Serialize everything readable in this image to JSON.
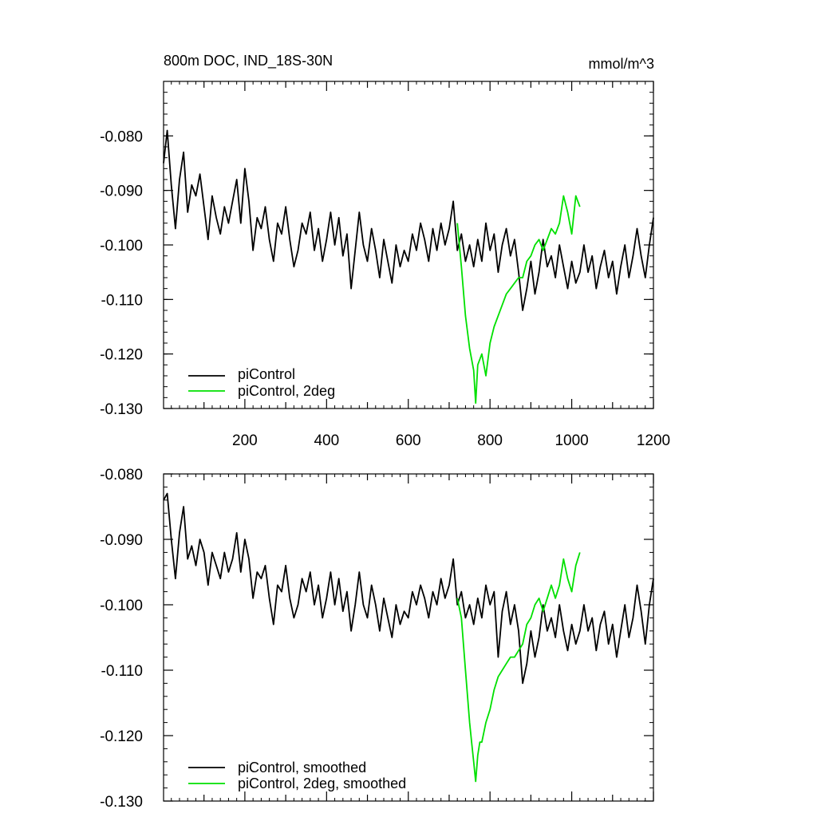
{
  "chart_data": [
    {
      "type": "line",
      "title": "800m DOC, IND_18S-30N",
      "units": "mmol/m^3",
      "xlim": [
        1,
        1200
      ],
      "ylim": [
        -0.13,
        -0.07
      ],
      "x_ticks": [
        200,
        400,
        600,
        800,
        1000,
        1200
      ],
      "x_tick_labels": [
        "200",
        "400",
        "600",
        "800",
        "1000",
        "1200"
      ],
      "y_ticks": [
        -0.13,
        -0.12,
        -0.11,
        -0.1,
        -0.09,
        -0.08
      ],
      "y_tick_labels": [
        "-0.130",
        "-0.120",
        "-0.110",
        "-0.100",
        "-0.090",
        "-0.080"
      ],
      "legend_position": "bottom-left",
      "series": [
        {
          "name": "piControl",
          "color": "#000000",
          "x": [
            1,
            10,
            20,
            30,
            40,
            50,
            60,
            70,
            80,
            90,
            100,
            110,
            120,
            130,
            140,
            150,
            160,
            170,
            180,
            190,
            200,
            210,
            220,
            230,
            240,
            250,
            260,
            270,
            280,
            290,
            300,
            310,
            320,
            330,
            340,
            350,
            360,
            370,
            380,
            390,
            400,
            410,
            420,
            430,
            440,
            450,
            460,
            470,
            480,
            490,
            500,
            510,
            520,
            530,
            540,
            550,
            560,
            570,
            580,
            590,
            600,
            610,
            620,
            630,
            640,
            650,
            660,
            670,
            680,
            690,
            700,
            710,
            720,
            730,
            740,
            750,
            760,
            770,
            780,
            790,
            800,
            810,
            820,
            830,
            840,
            850,
            860,
            870,
            880,
            890,
            900,
            910,
            920,
            930,
            940,
            950,
            960,
            970,
            980,
            990,
            1000,
            1010,
            1020,
            1030,
            1040,
            1050,
            1060,
            1070,
            1080,
            1090,
            1100,
            1110,
            1120,
            1130,
            1140,
            1150,
            1160,
            1170,
            1180,
            1190,
            1200
          ],
          "y": [
            -0.085,
            -0.079,
            -0.089,
            -0.097,
            -0.088,
            -0.083,
            -0.094,
            -0.089,
            -0.091,
            -0.087,
            -0.093,
            -0.099,
            -0.091,
            -0.095,
            -0.098,
            -0.093,
            -0.096,
            -0.092,
            -0.088,
            -0.096,
            -0.086,
            -0.092,
            -0.101,
            -0.095,
            -0.097,
            -0.093,
            -0.099,
            -0.103,
            -0.096,
            -0.098,
            -0.093,
            -0.099,
            -0.104,
            -0.101,
            -0.096,
            -0.098,
            -0.094,
            -0.101,
            -0.097,
            -0.103,
            -0.099,
            -0.094,
            -0.1,
            -0.095,
            -0.102,
            -0.098,
            -0.108,
            -0.101,
            -0.094,
            -0.1,
            -0.103,
            -0.097,
            -0.101,
            -0.106,
            -0.099,
            -0.103,
            -0.107,
            -0.1,
            -0.104,
            -0.101,
            -0.103,
            -0.098,
            -0.101,
            -0.096,
            -0.099,
            -0.103,
            -0.097,
            -0.101,
            -0.096,
            -0.1,
            -0.097,
            -0.092,
            -0.101,
            -0.098,
            -0.103,
            -0.1,
            -0.104,
            -0.099,
            -0.103,
            -0.096,
            -0.101,
            -0.098,
            -0.105,
            -0.1,
            -0.097,
            -0.102,
            -0.099,
            -0.105,
            -0.112,
            -0.108,
            -0.103,
            -0.109,
            -0.105,
            -0.099,
            -0.104,
            -0.102,
            -0.106,
            -0.1,
            -0.104,
            -0.108,
            -0.103,
            -0.107,
            -0.105,
            -0.1,
            -0.105,
            -0.102,
            -0.108,
            -0.104,
            -0.101,
            -0.106,
            -0.103,
            -0.109,
            -0.104,
            -0.1,
            -0.106,
            -0.102,
            -0.097,
            -0.102,
            -0.106,
            -0.1,
            -0.095
          ]
        },
        {
          "name": "piControl, 2deg",
          "color": "#00e000",
          "x": [
            720,
            730,
            740,
            750,
            760,
            765,
            770,
            780,
            790,
            800,
            810,
            820,
            830,
            840,
            850,
            860,
            870,
            880,
            890,
            900,
            910,
            920,
            930,
            940,
            950,
            960,
            970,
            980,
            990,
            1000,
            1010,
            1020
          ],
          "y": [
            -0.096,
            -0.104,
            -0.113,
            -0.119,
            -0.123,
            -0.129,
            -0.122,
            -0.12,
            -0.124,
            -0.118,
            -0.115,
            -0.113,
            -0.111,
            -0.109,
            -0.108,
            -0.107,
            -0.106,
            -0.106,
            -0.103,
            -0.102,
            -0.1,
            -0.099,
            -0.101,
            -0.099,
            -0.097,
            -0.098,
            -0.096,
            -0.091,
            -0.094,
            -0.098,
            -0.091,
            -0.093
          ]
        }
      ]
    },
    {
      "type": "line",
      "xlim": [
        1,
        1200
      ],
      "ylim": [
        -0.13,
        -0.08
      ],
      "y_ticks": [
        -0.13,
        -0.12,
        -0.11,
        -0.1,
        -0.09,
        -0.08
      ],
      "y_tick_labels": [
        "-0.130",
        "-0.120",
        "-0.110",
        "-0.100",
        "-0.090",
        "-0.080"
      ],
      "legend_position": "bottom-left",
      "series": [
        {
          "name": "piControl, smoothed",
          "color": "#000000",
          "x": [
            1,
            10,
            20,
            30,
            40,
            50,
            60,
            70,
            80,
            90,
            100,
            110,
            120,
            130,
            140,
            150,
            160,
            170,
            180,
            190,
            200,
            210,
            220,
            230,
            240,
            250,
            260,
            270,
            280,
            290,
            300,
            310,
            320,
            330,
            340,
            350,
            360,
            370,
            380,
            390,
            400,
            410,
            420,
            430,
            440,
            450,
            460,
            470,
            480,
            490,
            500,
            510,
            520,
            530,
            540,
            550,
            560,
            570,
            580,
            590,
            600,
            610,
            620,
            630,
            640,
            650,
            660,
            670,
            680,
            690,
            700,
            710,
            720,
            730,
            740,
            750,
            760,
            770,
            780,
            790,
            800,
            810,
            820,
            830,
            840,
            850,
            860,
            870,
            880,
            890,
            900,
            910,
            920,
            930,
            940,
            950,
            960,
            970,
            980,
            990,
            1000,
            1010,
            1020,
            1030,
            1040,
            1050,
            1060,
            1070,
            1080,
            1090,
            1100,
            1110,
            1120,
            1130,
            1140,
            1150,
            1160,
            1170,
            1180,
            1190,
            1200
          ],
          "y": [
            -0.084,
            -0.083,
            -0.09,
            -0.096,
            -0.089,
            -0.085,
            -0.093,
            -0.091,
            -0.094,
            -0.09,
            -0.092,
            -0.097,
            -0.092,
            -0.094,
            -0.096,
            -0.092,
            -0.095,
            -0.093,
            -0.089,
            -0.095,
            -0.09,
            -0.093,
            -0.099,
            -0.095,
            -0.096,
            -0.094,
            -0.099,
            -0.103,
            -0.097,
            -0.098,
            -0.094,
            -0.099,
            -0.102,
            -0.1,
            -0.096,
            -0.098,
            -0.095,
            -0.1,
            -0.097,
            -0.102,
            -0.099,
            -0.095,
            -0.1,
            -0.096,
            -0.101,
            -0.098,
            -0.104,
            -0.1,
            -0.095,
            -0.1,
            -0.102,
            -0.097,
            -0.1,
            -0.104,
            -0.099,
            -0.102,
            -0.105,
            -0.1,
            -0.103,
            -0.101,
            -0.102,
            -0.098,
            -0.1,
            -0.097,
            -0.099,
            -0.102,
            -0.098,
            -0.1,
            -0.096,
            -0.099,
            -0.097,
            -0.093,
            -0.1,
            -0.098,
            -0.102,
            -0.1,
            -0.103,
            -0.099,
            -0.102,
            -0.097,
            -0.1,
            -0.098,
            -0.108,
            -0.101,
            -0.098,
            -0.103,
            -0.1,
            -0.104,
            -0.112,
            -0.109,
            -0.104,
            -0.108,
            -0.105,
            -0.1,
            -0.104,
            -0.102,
            -0.105,
            -0.1,
            -0.104,
            -0.107,
            -0.103,
            -0.106,
            -0.104,
            -0.1,
            -0.104,
            -0.102,
            -0.107,
            -0.103,
            -0.101,
            -0.106,
            -0.103,
            -0.108,
            -0.104,
            -0.1,
            -0.105,
            -0.102,
            -0.097,
            -0.101,
            -0.106,
            -0.1,
            -0.096
          ]
        },
        {
          "name": "piControl, 2deg, smoothed",
          "color": "#00e000",
          "x": [
            720,
            730,
            740,
            750,
            755,
            760,
            765,
            770,
            775,
            780,
            790,
            800,
            810,
            820,
            830,
            840,
            850,
            860,
            870,
            880,
            890,
            900,
            910,
            920,
            930,
            940,
            950,
            960,
            970,
            980,
            990,
            1000,
            1010,
            1020
          ],
          "y": [
            -0.099,
            -0.102,
            -0.11,
            -0.118,
            -0.121,
            -0.124,
            -0.127,
            -0.123,
            -0.121,
            -0.121,
            -0.118,
            -0.116,
            -0.113,
            -0.111,
            -0.11,
            -0.109,
            -0.108,
            -0.108,
            -0.107,
            -0.106,
            -0.103,
            -0.102,
            -0.1,
            -0.099,
            -0.101,
            -0.099,
            -0.097,
            -0.099,
            -0.097,
            -0.093,
            -0.096,
            -0.098,
            -0.094,
            -0.092
          ]
        }
      ]
    }
  ]
}
